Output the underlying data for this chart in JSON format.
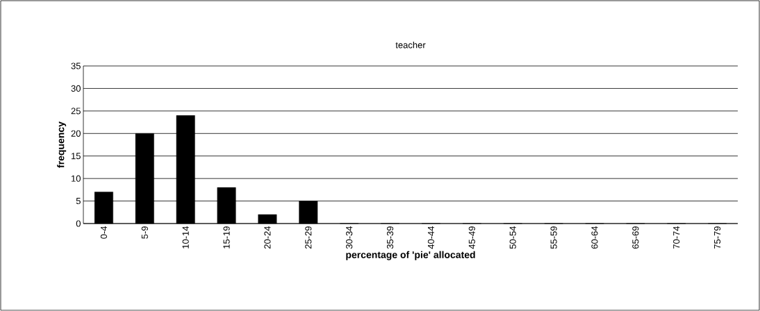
{
  "chart_data": {
    "type": "bar",
    "title": "teacher",
    "xlabel": "percentage of 'pie' allocated",
    "ylabel": "frequency",
    "categories": [
      "0-4",
      "5-9",
      "10-14",
      "15-19",
      "20-24",
      "25-29",
      "30-34",
      "35-39",
      "40-44",
      "45-49",
      "50-54",
      "55-59",
      "60-64",
      "65-69",
      "70-74",
      "75-79"
    ],
    "values": [
      7,
      20,
      24,
      8,
      2,
      5,
      0,
      0,
      0,
      0,
      0,
      0,
      0,
      0,
      0,
      0
    ],
    "color": "#000000",
    "ylim": [
      0,
      35
    ],
    "yticks": [
      0,
      5,
      10,
      15,
      20,
      25,
      30,
      35
    ],
    "grid": "y"
  }
}
